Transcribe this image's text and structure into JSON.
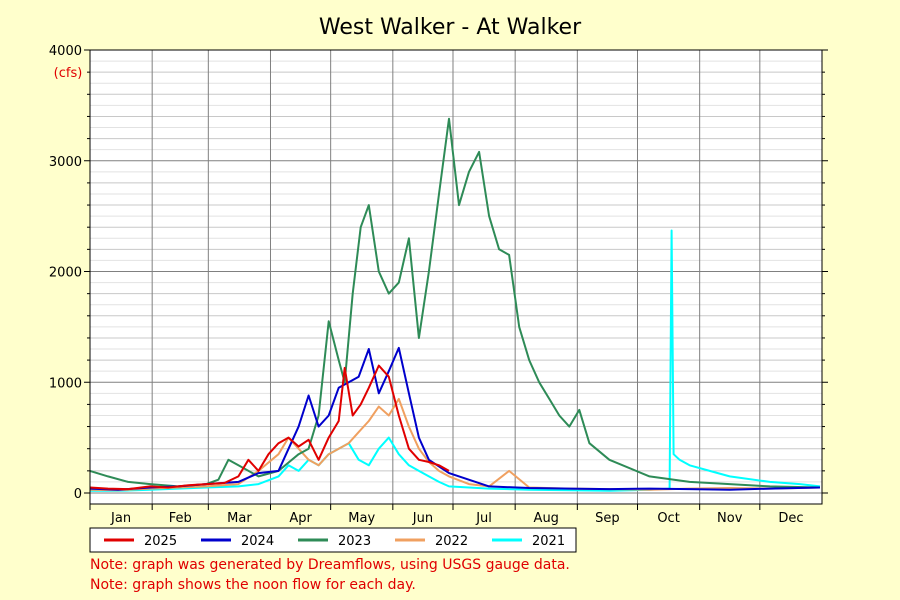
{
  "chart_data": {
    "type": "line",
    "title": "West Walker - At Walker",
    "ylabel": "(cfs)",
    "xlabel": "",
    "ylim": [
      0,
      4000
    ],
    "yticks": [
      0,
      1000,
      2000,
      3000,
      4000
    ],
    "x_unit": "day of year",
    "months": [
      "Jan",
      "Feb",
      "Mar",
      "Apr",
      "May",
      "Jun",
      "Jul",
      "Aug",
      "Sep",
      "Oct",
      "Nov",
      "Dec"
    ],
    "grid": true,
    "legend_position": "bottom-left",
    "series": [
      {
        "name": "2025",
        "color": "#e00000",
        "x": [
          1,
          10,
          20,
          31,
          40,
          50,
          59,
          68,
          75,
          80,
          85,
          90,
          95,
          100,
          105,
          110,
          115,
          120,
          125,
          128,
          132,
          136,
          140,
          145,
          150,
          155,
          160,
          165,
          170,
          175,
          180
        ],
        "y": [
          50,
          40,
          35,
          60,
          50,
          70,
          80,
          90,
          150,
          300,
          200,
          350,
          450,
          500,
          420,
          480,
          300,
          500,
          650,
          1130,
          700,
          800,
          950,
          1150,
          1050,
          700,
          400,
          300,
          280,
          250,
          200
        ]
      },
      {
        "name": "2024",
        "color": "#0000cc",
        "x": [
          1,
          15,
          31,
          45,
          59,
          75,
          85,
          95,
          105,
          110,
          115,
          120,
          125,
          130,
          135,
          140,
          145,
          150,
          155,
          160,
          165,
          170,
          180,
          200,
          220,
          240,
          260,
          280,
          300,
          320,
          340,
          365
        ],
        "y": [
          40,
          30,
          50,
          60,
          80,
          100,
          180,
          200,
          600,
          880,
          600,
          700,
          950,
          1000,
          1050,
          1300,
          900,
          1100,
          1310,
          900,
          500,
          300,
          180,
          60,
          45,
          40,
          35,
          40,
          35,
          30,
          40,
          50
        ]
      },
      {
        "name": "2023",
        "color": "#2e8b57",
        "x": [
          1,
          10,
          20,
          31,
          45,
          59,
          65,
          70,
          75,
          85,
          95,
          105,
          110,
          115,
          120,
          125,
          128,
          132,
          136,
          140,
          145,
          150,
          155,
          160,
          165,
          170,
          175,
          180,
          185,
          190,
          195,
          200,
          205,
          210,
          215,
          220,
          225,
          230,
          235,
          240,
          245,
          250,
          260,
          280,
          300,
          320,
          340,
          365
        ],
        "y": [
          200,
          150,
          100,
          80,
          60,
          80,
          120,
          300,
          250,
          150,
          200,
          350,
          400,
          700,
          1550,
          1200,
          1000,
          1800,
          2400,
          2600,
          2000,
          1800,
          1900,
          2300,
          1400,
          2000,
          2700,
          3380,
          2600,
          2900,
          3080,
          2500,
          2200,
          2150,
          1500,
          1200,
          1000,
          850,
          700,
          600,
          750,
          450,
          300,
          150,
          100,
          80,
          60,
          50
        ]
      },
      {
        "name": "2022",
        "color": "#f0a060",
        "x": [
          1,
          15,
          31,
          45,
          59,
          75,
          85,
          95,
          100,
          105,
          110,
          115,
          120,
          125,
          130,
          135,
          140,
          145,
          150,
          155,
          160,
          165,
          170,
          175,
          180,
          190,
          200,
          210,
          220,
          240,
          260,
          280,
          300,
          320,
          340,
          365
        ],
        "y": [
          30,
          25,
          40,
          50,
          60,
          80,
          200,
          350,
          500,
          400,
          300,
          250,
          350,
          400,
          450,
          550,
          650,
          780,
          700,
          850,
          600,
          400,
          280,
          200,
          150,
          80,
          60,
          200,
          50,
          40,
          35,
          30,
          40,
          45,
          40,
          50
        ]
      },
      {
        "name": "2021",
        "color": "#00ffff",
        "x": [
          1,
          15,
          31,
          45,
          59,
          75,
          85,
          95,
          100,
          105,
          110,
          115,
          120,
          125,
          130,
          135,
          140,
          145,
          150,
          155,
          160,
          165,
          170,
          175,
          180,
          200,
          220,
          240,
          260,
          280,
          290,
          291,
          292,
          295,
          300,
          310,
          320,
          340,
          355,
          365
        ],
        "y": [
          20,
          20,
          30,
          40,
          50,
          60,
          80,
          150,
          250,
          200,
          300,
          250,
          350,
          400,
          450,
          300,
          250,
          400,
          500,
          350,
          250,
          200,
          150,
          100,
          60,
          40,
          30,
          25,
          20,
          30,
          40,
          2370,
          350,
          300,
          250,
          200,
          150,
          100,
          80,
          60
        ]
      }
    ]
  },
  "notes": [
    "Note: graph was generated by Dreamflows, using USGS gauge data.",
    "Note: graph shows the noon flow for each day."
  ]
}
